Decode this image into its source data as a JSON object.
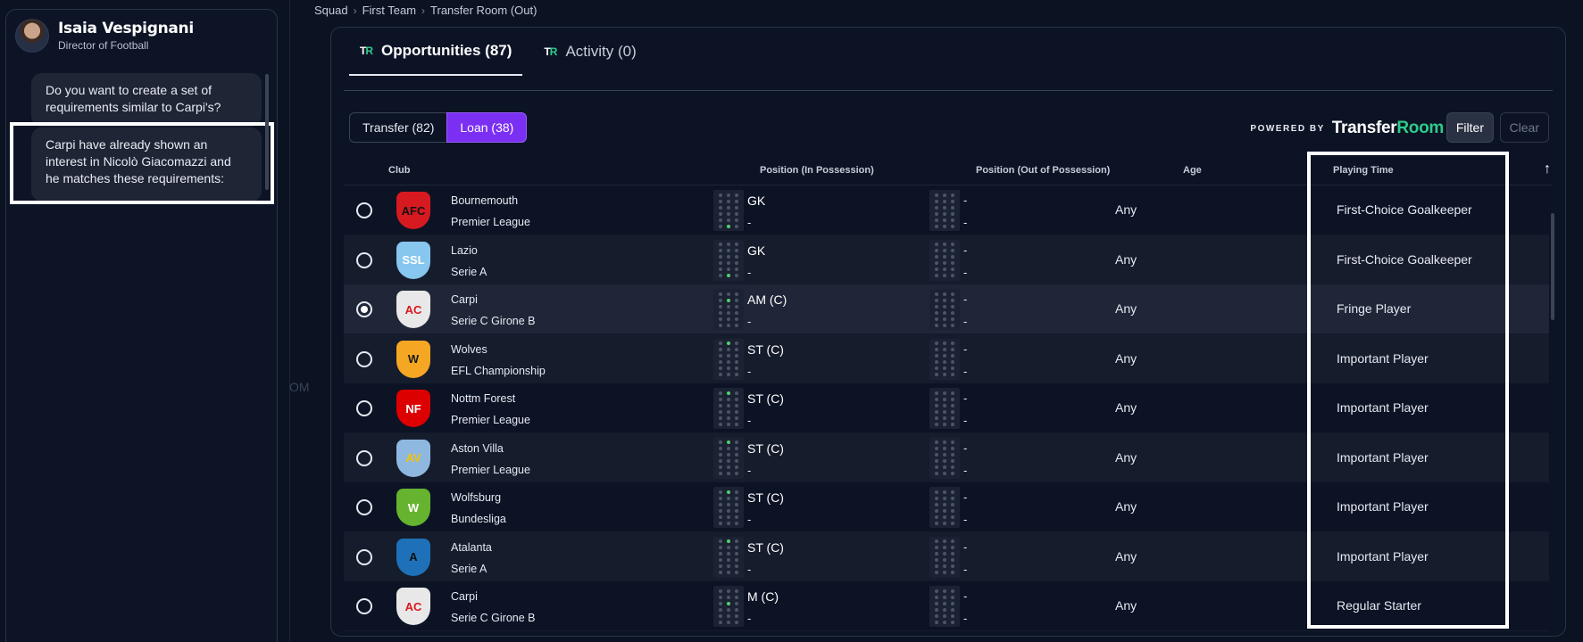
{
  "assistant": {
    "name": "Isaia Vespignani",
    "role": "Director of Football",
    "messages": [
      "Do you want to create a set of requirements similar to Carpi's?",
      "Carpi have already shown an interest in Nicolò Giacomazzi and he matches these requirements:"
    ]
  },
  "background_hint": "OM",
  "breadcrumb": [
    "Squad",
    "First Team",
    "Transfer Room (Out)"
  ],
  "tabs": [
    {
      "label": "Opportunities (87)",
      "active": true
    },
    {
      "label": "Activity (0)",
      "active": false
    }
  ],
  "tr_logo": {
    "t": "T",
    "r": "R"
  },
  "segments": [
    {
      "label": "Transfer (82)",
      "active": false
    },
    {
      "label": "Loan (38)",
      "active": true
    }
  ],
  "powered": {
    "label": "POWERED BY",
    "brand_a": "Transfer",
    "brand_b": "Room"
  },
  "actions": {
    "filter": "Filter",
    "clear": "Clear"
  },
  "columns": {
    "club": "Club",
    "pos_in": "Position (In Possession)",
    "pos_out": "Position (Out of Possession)",
    "age": "Age",
    "playing_time": "Playing Time",
    "sort_icon": "arrow-up-icon"
  },
  "rows": [
    {
      "club": "Bournemouth",
      "league": "Premier League",
      "pos_in": "GK",
      "pos_in_sub": "-",
      "pos_out": "-",
      "pos_out_sub": "-",
      "age": "Any",
      "playing_time": "First-Choice Goalkeeper",
      "selected": false,
      "crest": {
        "abbr": "AFC",
        "bg": "#d71920",
        "fg": "#111111"
      },
      "dot": 16
    },
    {
      "club": "Lazio",
      "league": "Serie A",
      "pos_in": "GK",
      "pos_in_sub": "-",
      "pos_out": "-",
      "pos_out_sub": "-",
      "age": "Any",
      "playing_time": "First-Choice Goalkeeper",
      "selected": false,
      "crest": {
        "abbr": "SSL",
        "bg": "#87c6ee",
        "fg": "#ffffff"
      },
      "dot": 16
    },
    {
      "club": "Carpi",
      "league": "Serie C Girone B",
      "pos_in": "AM (C)",
      "pos_in_sub": "-",
      "pos_out": "-",
      "pos_out_sub": "-",
      "age": "Any",
      "playing_time": "Fringe Player",
      "selected": true,
      "crest": {
        "abbr": "AC",
        "bg": "#e8e8e8",
        "fg": "#d71920"
      },
      "dot": 4
    },
    {
      "club": "Wolves",
      "league": "EFL Championship",
      "pos_in": "ST (C)",
      "pos_in_sub": "-",
      "pos_out": "-",
      "pos_out_sub": "-",
      "age": "Any",
      "playing_time": "Important Player",
      "selected": false,
      "crest": {
        "abbr": "W",
        "bg": "#f5a623",
        "fg": "#1a1a1a"
      },
      "dot": 1
    },
    {
      "club": "Nottm Forest",
      "league": "Premier League",
      "pos_in": "ST (C)",
      "pos_in_sub": "-",
      "pos_out": "-",
      "pos_out_sub": "-",
      "age": "Any",
      "playing_time": "Important Player",
      "selected": false,
      "crest": {
        "abbr": "NF",
        "bg": "#dd0000",
        "fg": "#ffffff"
      },
      "dot": 1
    },
    {
      "club": "Aston Villa",
      "league": "Premier League",
      "pos_in": "ST (C)",
      "pos_in_sub": "-",
      "pos_out": "-",
      "pos_out_sub": "-",
      "age": "Any",
      "playing_time": "Important Player",
      "selected": false,
      "crest": {
        "abbr": "AV",
        "bg": "#8fb8e0",
        "fg": "#f2c200"
      },
      "dot": 1
    },
    {
      "club": "Wolfsburg",
      "league": "Bundesliga",
      "pos_in": "ST (C)",
      "pos_in_sub": "-",
      "pos_out": "-",
      "pos_out_sub": "-",
      "age": "Any",
      "playing_time": "Important Player",
      "selected": false,
      "crest": {
        "abbr": "W",
        "bg": "#65b32e",
        "fg": "#ffffff"
      },
      "dot": 1
    },
    {
      "club": "Atalanta",
      "league": "Serie A",
      "pos_in": "ST (C)",
      "pos_in_sub": "-",
      "pos_out": "-",
      "pos_out_sub": "-",
      "age": "Any",
      "playing_time": "Important Player",
      "selected": false,
      "crest": {
        "abbr": "A",
        "bg": "#1e71b8",
        "fg": "#111111"
      },
      "dot": 1
    },
    {
      "club": "Carpi",
      "league": "Serie C Girone B",
      "pos_in": "M (C)",
      "pos_in_sub": "-",
      "pos_out": "-",
      "pos_out_sub": "-",
      "age": "Any",
      "playing_time": "Regular Starter",
      "selected": false,
      "crest": {
        "abbr": "AC",
        "bg": "#e8e8e8",
        "fg": "#d71920"
      },
      "dot": 7
    }
  ]
}
